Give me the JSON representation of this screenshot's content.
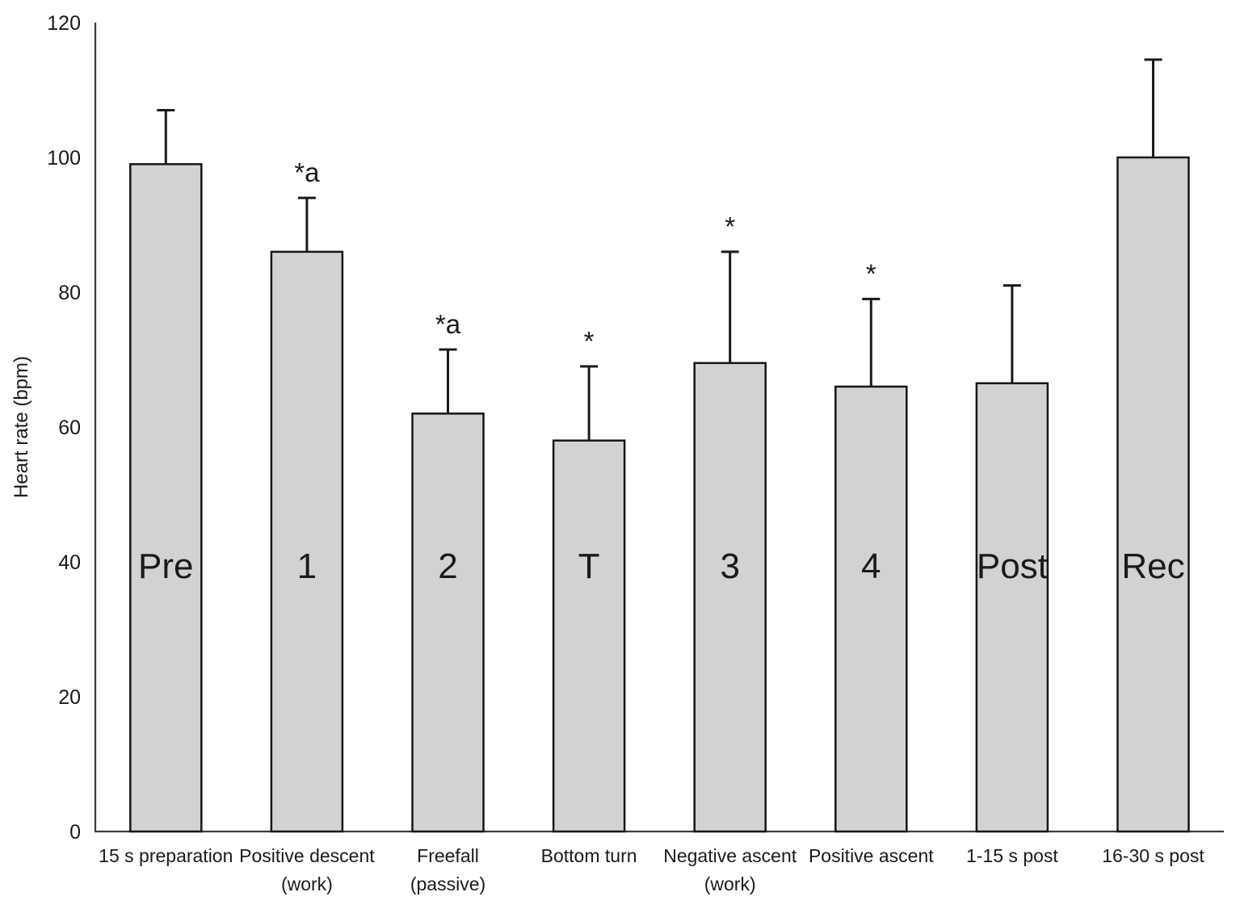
{
  "chart_data": {
    "type": "bar",
    "title": "",
    "xlabel": "",
    "ylabel": "Heart rate (bpm)",
    "ylim": [
      0,
      120
    ],
    "yticks": [
      0,
      20,
      40,
      60,
      80,
      100,
      120
    ],
    "grid": false,
    "legend": null,
    "bar_fill": "#d2d2d2",
    "bar_stroke": "#161616",
    "error_color": "#1a1a1a",
    "axis_color": "#3f3f3f",
    "text_color": "#1a1a1a",
    "categories": [
      {
        "phase_label": [
          "15 s preparation"
        ],
        "bar_label": "Pre",
        "value": 99,
        "error_plus": 8,
        "annotation": ""
      },
      {
        "phase_label": [
          "Positive descent",
          "(work)"
        ],
        "bar_label": "1",
        "value": 86,
        "error_plus": 8,
        "annotation": "*a"
      },
      {
        "phase_label": [
          "Freefall",
          "(passive)"
        ],
        "bar_label": "2",
        "value": 62,
        "error_plus": 9.5,
        "annotation": "*a"
      },
      {
        "phase_label": [
          "Bottom turn"
        ],
        "bar_label": "T",
        "value": 58,
        "error_plus": 11,
        "annotation": "*"
      },
      {
        "phase_label": [
          "Negative ascent",
          "(work)"
        ],
        "bar_label": "3",
        "value": 69.5,
        "error_plus": 16.5,
        "annotation": "*"
      },
      {
        "phase_label": [
          "Positive ascent"
        ],
        "bar_label": "4",
        "value": 66,
        "error_plus": 13,
        "annotation": "*"
      },
      {
        "phase_label": [
          "1-15 s post"
        ],
        "bar_label": "Post",
        "value": 66.5,
        "error_plus": 14.5,
        "annotation": ""
      },
      {
        "phase_label": [
          "16-30 s post"
        ],
        "bar_label": "Rec",
        "value": 100,
        "error_plus": 14.5,
        "annotation": ""
      }
    ]
  }
}
